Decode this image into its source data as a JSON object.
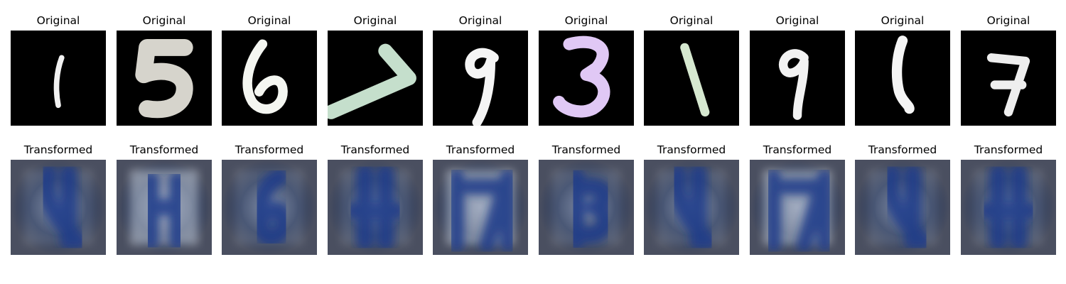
{
  "figure": {
    "original_title": "Original",
    "transformed_title": "Transformed"
  },
  "panels": [
    {
      "digit": "1",
      "stroke_color": "#f2f2f2",
      "background": "#000000"
    },
    {
      "digit": "5",
      "stroke_color": "#d6d4cc",
      "background": "#000000"
    },
    {
      "digit": "6",
      "stroke_color": "#f4f6f1",
      "background": "#000000"
    },
    {
      "digit": "7",
      "stroke_color": "#c5dfcc",
      "background": "#000000"
    },
    {
      "digit": "9",
      "stroke_color": "#f5f5f5",
      "background": "#000000"
    },
    {
      "digit": "3",
      "stroke_color": "#e0c8f5",
      "background": "#000000"
    },
    {
      "digit": "1",
      "stroke_color": "#d6e8d0",
      "background": "#000000"
    },
    {
      "digit": "9",
      "stroke_color": "#f2f2f2",
      "background": "#000000"
    },
    {
      "digit": "1",
      "stroke_color": "#f5f5f5",
      "background": "#000000"
    },
    {
      "digit": "7",
      "stroke_color": "#eeeeee",
      "background": "#000000"
    }
  ],
  "transformed_palette": {
    "dark": "#2b3a5c",
    "mid": "#6f7d9c",
    "light": "#c8d0dc",
    "accent": "#1f3a8a"
  }
}
